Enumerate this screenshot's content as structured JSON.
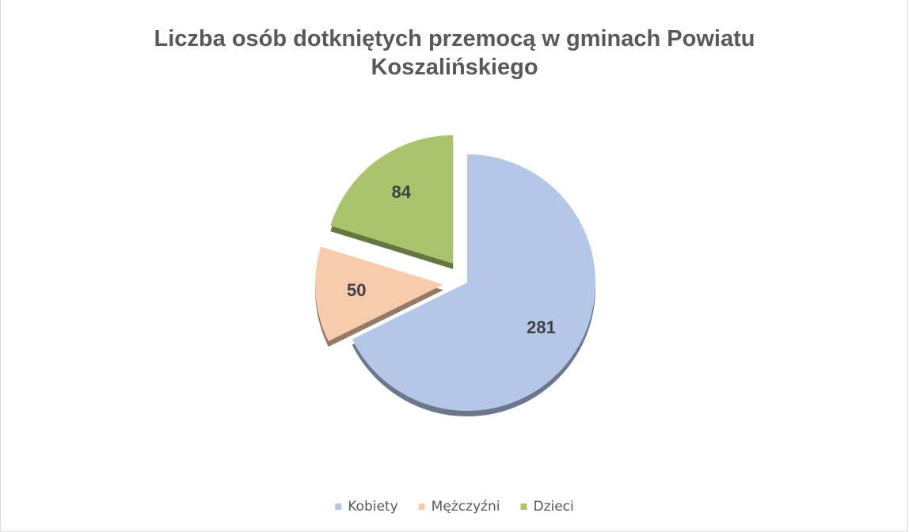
{
  "chart_data": {
    "type": "pie",
    "title": "Liczba osób dotkniętych przemocą w gminach Powiatu Koszalińskiego",
    "categories": [
      "Kobiety",
      "Mężczyźni",
      "Dzieci"
    ],
    "values": [
      281,
      50,
      84
    ],
    "colors": [
      "#b4c7e7",
      "#f8cbad",
      "#a9c46c"
    ],
    "legend": "bottom"
  }
}
